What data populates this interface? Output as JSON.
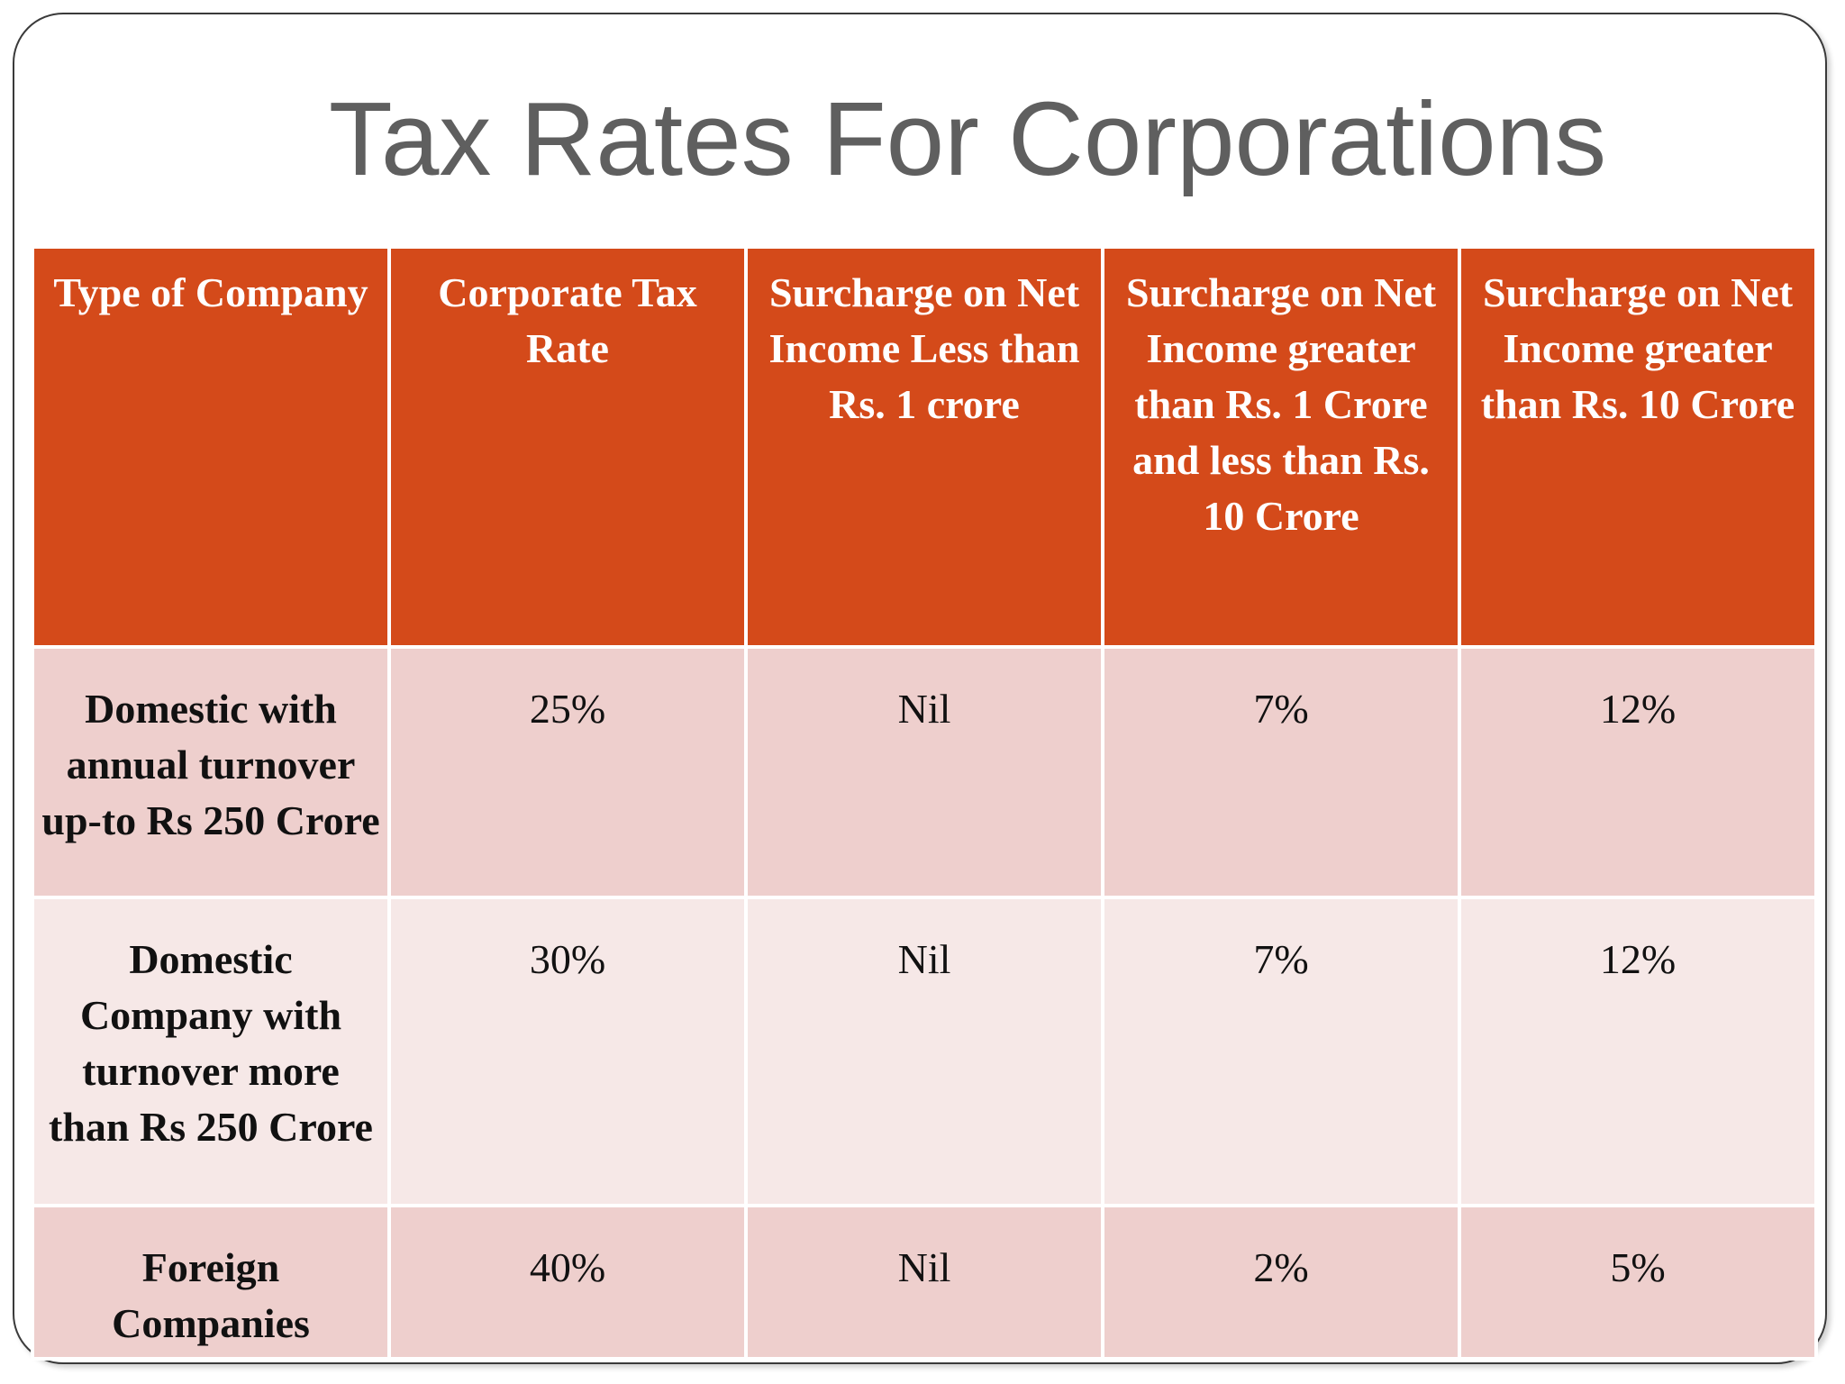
{
  "slide": {
    "title": "Tax Rates For Corporations"
  },
  "table": {
    "headers": [
      "Type of Company",
      "Corporate Tax Rate",
      "Surcharge on Net Income Less than  Rs. 1 crore",
      "Surcharge on Net Income greater than Rs. 1 Crore and less than Rs. 10 Crore",
      "Surcharge on Net Income greater than Rs. 10 Crore"
    ],
    "rows": [
      [
        "Domestic with annual turnover up-to Rs 250 Crore",
        "25%",
        "Nil",
        "7%",
        "12%"
      ],
      [
        "Domestic Company with turnover more than Rs 250 Crore",
        "30%",
        "Nil",
        "7%",
        "12%"
      ],
      [
        "Foreign Companies",
        "40%",
        "Nil",
        "2%",
        "5%"
      ]
    ]
  },
  "colors": {
    "header_bg": "#d44a1a",
    "row_dark": "#eecfcd",
    "row_light": "#f6e8e7",
    "title_text": "#5f5f5f"
  }
}
